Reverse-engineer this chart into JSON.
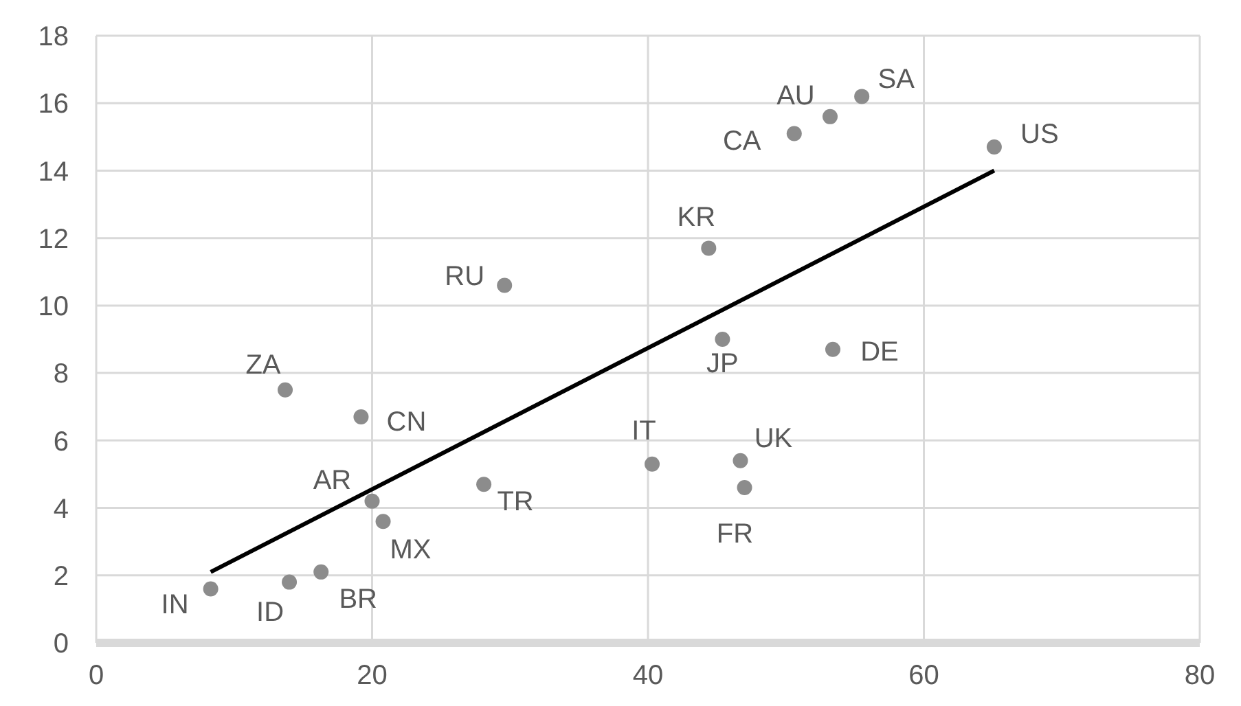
{
  "chart_data": {
    "type": "scatter",
    "xlim": [
      0,
      80
    ],
    "xticks": [
      0,
      20,
      40,
      60,
      80
    ],
    "ylim": [
      0,
      18
    ],
    "yticks": [
      0,
      2,
      4,
      6,
      8,
      10,
      12,
      14,
      16,
      18
    ],
    "grid": true,
    "marker": "circle",
    "series": [
      {
        "color": "#8c8c8c",
        "x": [
          8.3,
          14.0,
          16.3,
          20.0,
          20.8,
          19.2,
          13.7,
          28.1,
          29.6,
          40.3,
          44.4,
          45.4,
          46.7,
          47.0,
          53.4,
          50.6,
          53.2,
          55.5,
          65.1
        ],
        "values": [
          1.6,
          1.8,
          2.1,
          4.2,
          3.6,
          6.7,
          7.5,
          4.7,
          10.6,
          5.3,
          11.7,
          9.0,
          5.4,
          4.6,
          8.7,
          15.1,
          15.6,
          16.2,
          14.7
        ]
      },
      {
        "type": "line",
        "color": "#000000",
        "marker": "none",
        "line_style": "solid",
        "x": [
          8.3,
          65.1
        ],
        "values": [
          2.1,
          14.0
        ]
      }
    ],
    "annotations": [
      {
        "text": "IN",
        "x": 8.3,
        "y": 1.6
      },
      {
        "text": "ID",
        "x": 14.0,
        "y": 1.8
      },
      {
        "text": "BR",
        "x": 16.3,
        "y": 2.1
      },
      {
        "text": "AR",
        "x": 20.0,
        "y": 4.2
      },
      {
        "text": "MX",
        "x": 20.8,
        "y": 3.6
      },
      {
        "text": "CN",
        "x": 19.2,
        "y": 6.7
      },
      {
        "text": "ZA",
        "x": 13.7,
        "y": 7.5
      },
      {
        "text": "TR",
        "x": 28.1,
        "y": 4.7
      },
      {
        "text": "RU",
        "x": 29.6,
        "y": 10.6
      },
      {
        "text": "IT",
        "x": 40.3,
        "y": 5.3
      },
      {
        "text": "KR",
        "x": 44.4,
        "y": 11.7
      },
      {
        "text": "JP",
        "x": 45.4,
        "y": 9.0
      },
      {
        "text": "UK",
        "x": 46.7,
        "y": 5.4
      },
      {
        "text": "FR",
        "x": 47.0,
        "y": 4.6
      },
      {
        "text": "DE",
        "x": 53.4,
        "y": 8.7
      },
      {
        "text": "CA",
        "x": 50.6,
        "y": 15.1
      },
      {
        "text": "AU",
        "x": 53.2,
        "y": 15.6
      },
      {
        "text": "SA",
        "x": 55.5,
        "y": 16.2
      },
      {
        "text": "US",
        "x": 65.1,
        "y": 14.7
      }
    ]
  }
}
